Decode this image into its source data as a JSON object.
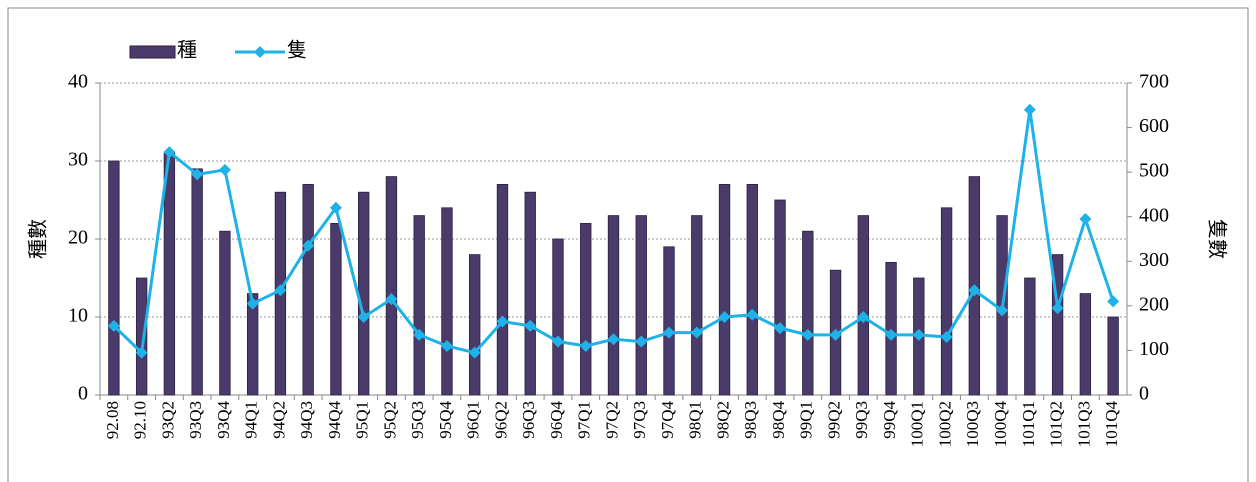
{
  "chart_data": {
    "type": "bar_line",
    "categories": [
      "92.08",
      "92.10",
      "93Q2",
      "93Q3",
      "93Q4",
      "94Q1",
      "94Q2",
      "94Q3",
      "94Q4",
      "95Q1",
      "95Q2",
      "95Q3",
      "95Q4",
      "96Q1",
      "96Q2",
      "96Q3",
      "96Q4",
      "97Q1",
      "97Q2",
      "97Q3",
      "97Q4",
      "98Q1",
      "98Q2",
      "98Q3",
      "98Q4",
      "99Q1",
      "99Q2",
      "99Q3",
      "99Q4",
      "100Q1",
      "100Q2",
      "100Q3",
      "100Q4",
      "101Q1",
      "101Q2",
      "101Q3",
      "101Q4"
    ],
    "series": [
      {
        "name": "種",
        "type": "bar",
        "axis": "y",
        "color": "#4b3b6b",
        "values": [
          30,
          15,
          31,
          29,
          21,
          13,
          26,
          27,
          22,
          26,
          28,
          23,
          24,
          18,
          27,
          26,
          20,
          22,
          23,
          23,
          19,
          23,
          27,
          27,
          25,
          21,
          16,
          23,
          17,
          15,
          24,
          28,
          23,
          15,
          18,
          13,
          10
        ]
      },
      {
        "name": "隻",
        "type": "line",
        "axis": "y2",
        "color": "#1eb2e8",
        "values": [
          155,
          95,
          545,
          495,
          505,
          205,
          235,
          335,
          420,
          175,
          215,
          135,
          110,
          95,
          165,
          155,
          120,
          110,
          125,
          120,
          140,
          140,
          175,
          180,
          150,
          135,
          135,
          175,
          135,
          135,
          130,
          235,
          190,
          640,
          195,
          395,
          210
        ]
      }
    ],
    "y_label": "種數",
    "y2_label": "隻數",
    "ylim": [
      0,
      40
    ],
    "yticks": [
      0,
      10,
      20,
      30,
      40
    ],
    "y2lim": [
      0,
      700
    ],
    "y2ticks": [
      0,
      100,
      200,
      300,
      400,
      500,
      600,
      700
    ],
    "grid": true,
    "legend": "top-left"
  }
}
